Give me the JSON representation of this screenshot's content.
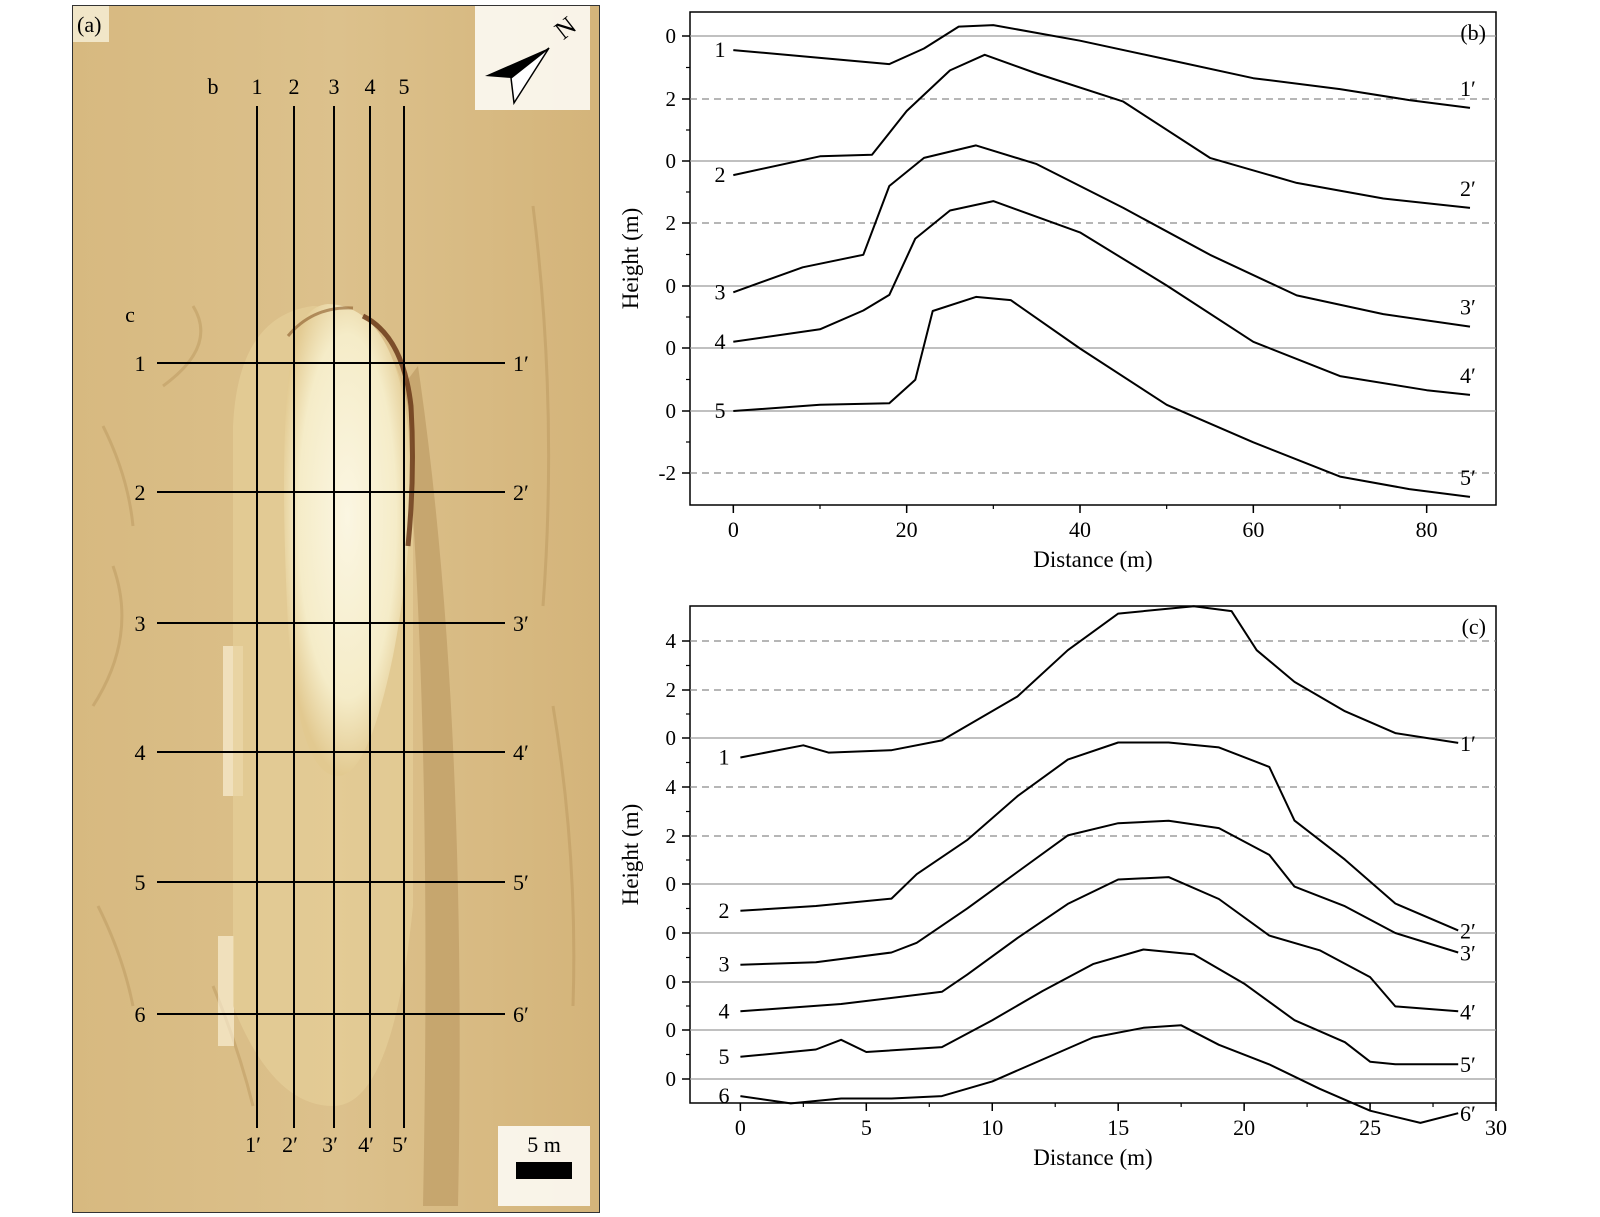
{
  "panel_a": {
    "panel_label": "(a)",
    "north_label": "N",
    "scale_label": "5 m",
    "profile_set_b_label": "b",
    "profile_set_c_label": "c",
    "vertical_profiles": [
      {
        "start": "1",
        "end": "1′"
      },
      {
        "start": "2",
        "end": "2′"
      },
      {
        "start": "3",
        "end": "3′"
      },
      {
        "start": "4",
        "end": "4′"
      },
      {
        "start": "5",
        "end": "5′"
      }
    ],
    "horizontal_profiles": [
      {
        "start": "1",
        "end": "1′"
      },
      {
        "start": "2",
        "end": "2′"
      },
      {
        "start": "3",
        "end": "3′"
      },
      {
        "start": "4",
        "end": "4′"
      },
      {
        "start": "5",
        "end": "5′"
      },
      {
        "start": "6",
        "end": "6′"
      }
    ],
    "colors": {
      "background": "#dcc18c",
      "mound": "#f5ecc8",
      "rim": "#6b3a1a",
      "line": "#000000"
    }
  },
  "chart_data": [
    {
      "type": "line",
      "panel_label": "(b)",
      "xlabel": "Distance (m)",
      "ylabel": "Height (m)",
      "xlim": [
        -5,
        88
      ],
      "x_ticks": [
        0,
        20,
        40,
        60,
        80
      ],
      "y_tick_labels": [
        "0",
        "2",
        "0",
        "2",
        "0",
        "0",
        "0",
        "-2"
      ],
      "series": [
        {
          "name": "1",
          "end_label": "1′",
          "x": [
            0,
            10,
            18,
            22,
            26,
            30,
            40,
            50,
            60,
            70,
            78,
            85
          ],
          "y": [
            -0.45,
            -0.7,
            -0.9,
            -0.4,
            0.3,
            0.35,
            -0.15,
            -0.75,
            -1.35,
            -1.7,
            -2.05,
            -2.3
          ]
        },
        {
          "name": "2",
          "end_label": "2′",
          "x": [
            0,
            10,
            16,
            20,
            25,
            29,
            35,
            45,
            55,
            65,
            75,
            85
          ],
          "y": [
            -0.45,
            0.15,
            0.2,
            1.6,
            2.9,
            3.4,
            2.8,
            1.9,
            0.1,
            -0.7,
            -1.2,
            -1.5
          ]
        },
        {
          "name": "3",
          "end_label": "3′",
          "x": [
            0,
            8,
            15,
            18,
            22,
            28,
            35,
            45,
            55,
            65,
            75,
            85
          ],
          "y": [
            -0.2,
            0.6,
            1.0,
            3.2,
            4.1,
            4.5,
            3.9,
            2.5,
            1.0,
            -0.3,
            -0.9,
            -1.3
          ]
        },
        {
          "name": "4",
          "end_label": "4′",
          "x": [
            0,
            10,
            15,
            18,
            21,
            25,
            30,
            40,
            50,
            60,
            70,
            80,
            85
          ],
          "y": [
            0.2,
            0.6,
            1.2,
            1.7,
            3.5,
            4.4,
            4.7,
            3.7,
            2.0,
            0.2,
            -0.9,
            -1.35,
            -1.5
          ]
        },
        {
          "name": "5",
          "end_label": "5′",
          "x": [
            0,
            10,
            18,
            21,
            23,
            28,
            32,
            40,
            50,
            60,
            70,
            78,
            85
          ],
          "y": [
            0,
            0.2,
            0.25,
            1.0,
            3.2,
            3.65,
            3.55,
            2.0,
            0.2,
            -1.0,
            -2.1,
            -2.5,
            -2.75
          ]
        }
      ],
      "grid_lines": [
        {
          "style": "solid"
        },
        {
          "style": "dashed"
        },
        {
          "style": "solid"
        },
        {
          "style": "dashed"
        },
        {
          "style": "solid"
        },
        {
          "style": "solid"
        },
        {
          "style": "solid"
        },
        {
          "style": "dashed"
        }
      ]
    },
    {
      "type": "line",
      "panel_label": "(c)",
      "xlabel": "Distance (m)",
      "ylabel": "Height (m)",
      "xlim": [
        -2,
        30
      ],
      "x_ticks": [
        0,
        5,
        10,
        15,
        20,
        25,
        30
      ],
      "y_tick_labels": [
        "4",
        "2",
        "0",
        "4",
        "2",
        "0",
        "0",
        "0",
        "0",
        "0"
      ],
      "series": [
        {
          "name": "1",
          "end_label": "1′",
          "x": [
            0,
            2.5,
            3.5,
            6,
            8,
            11,
            13,
            15,
            18,
            19.5,
            20.5,
            22,
            24,
            26,
            28.5
          ],
          "y": [
            -0.8,
            -0.3,
            -0.6,
            -0.5,
            -0.1,
            1.7,
            3.6,
            5.1,
            5.4,
            5.2,
            3.6,
            2.3,
            1.1,
            0.2,
            -0.2
          ]
        },
        {
          "name": "2",
          "end_label": "2′",
          "x": [
            0,
            3,
            6,
            7,
            9,
            11,
            13,
            15,
            17,
            19,
            21,
            22,
            24,
            26,
            28.5
          ],
          "y": [
            -1.1,
            -0.9,
            -0.6,
            0.4,
            1.8,
            3.6,
            5.1,
            5.8,
            5.8,
            5.6,
            4.8,
            2.6,
            1.0,
            -0.8,
            -1.9
          ]
        },
        {
          "name": "3",
          "end_label": "3′",
          "x": [
            0,
            3,
            6,
            7,
            9,
            11,
            13,
            15,
            17,
            19,
            21,
            22,
            24,
            26,
            28.5
          ],
          "y": [
            -1.3,
            -1.2,
            -0.8,
            -0.4,
            1.0,
            2.5,
            4.0,
            4.5,
            4.6,
            4.3,
            3.2,
            1.9,
            1.1,
            0.0,
            -0.8
          ]
        },
        {
          "name": "4",
          "end_label": "4′",
          "x": [
            0,
            4,
            8,
            9,
            11,
            13,
            15,
            17,
            19,
            21,
            23,
            25,
            26,
            28.5
          ],
          "y": [
            -1.2,
            -0.9,
            -0.4,
            0.3,
            1.8,
            3.2,
            4.2,
            4.3,
            3.4,
            1.9,
            1.3,
            0.2,
            -1.0,
            -1.2
          ]
        },
        {
          "name": "5",
          "end_label": "5′",
          "x": [
            0,
            3,
            4,
            5,
            8,
            10,
            12,
            14,
            16,
            18,
            20,
            22,
            24,
            25,
            26,
            28.5
          ],
          "y": [
            -1.1,
            -0.8,
            -0.4,
            -0.9,
            -0.7,
            0.4,
            1.6,
            2.7,
            3.3,
            3.1,
            1.9,
            0.4,
            -0.5,
            -1.3,
            -1.4,
            -1.4
          ]
        },
        {
          "name": "6",
          "end_label": "6′",
          "x": [
            0,
            2,
            4,
            6,
            8,
            10,
            12,
            14,
            16,
            17.5,
            19,
            21,
            23,
            25,
            27,
            28.5
          ],
          "y": [
            -0.7,
            -1.0,
            -0.8,
            -0.8,
            -0.7,
            -0.1,
            0.8,
            1.7,
            2.1,
            2.2,
            1.4,
            0.6,
            -0.4,
            -1.3,
            -1.8,
            -1.4
          ]
        }
      ],
      "grid_lines": [
        {
          "style": "dashed"
        },
        {
          "style": "dashed"
        },
        {
          "style": "solid"
        },
        {
          "style": "dashed"
        },
        {
          "style": "dashed"
        },
        {
          "style": "solid"
        },
        {
          "style": "solid"
        },
        {
          "style": "solid"
        },
        {
          "style": "solid"
        },
        {
          "style": "solid"
        }
      ]
    }
  ]
}
